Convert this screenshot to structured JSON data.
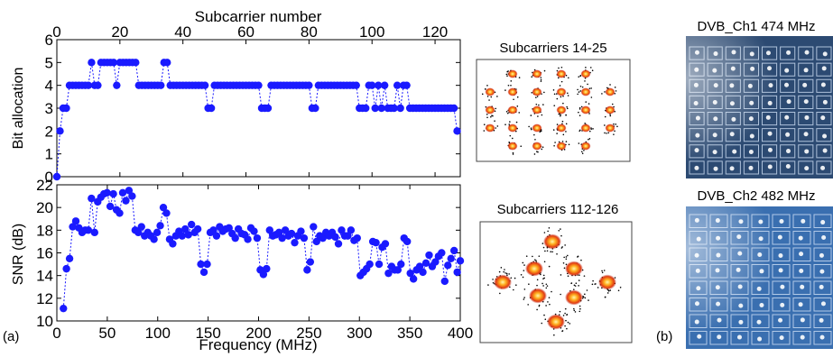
{
  "panel_labels": {
    "a": "(a)",
    "b": "(b)"
  },
  "constellation_titles": [
    "Subcarriers 14-25",
    "Subcarriers 112-126"
  ],
  "tv_titles": [
    "DVB_Ch1 474 MHz",
    "DVB_Ch2 482 MHz"
  ],
  "colors": {
    "marker": "#1a1aff",
    "line": "#1a1aff",
    "tv_bg": "#2c4a72",
    "tv_bg2": "#3a6fb0"
  },
  "chart_data": [
    {
      "type": "scatter",
      "subtype": "line-with-markers",
      "title": "",
      "xlabel": "Subcarrier number",
      "ylabel": "Bit allocation",
      "x_axis_position": "top",
      "xlim": [
        0,
        128
      ],
      "ylim": [
        0,
        6
      ],
      "xticks": [
        0,
        20,
        40,
        60,
        80,
        100,
        120
      ],
      "yticks": [
        0,
        1,
        2,
        3,
        4,
        5,
        6
      ],
      "x": [
        0,
        1,
        2,
        3,
        4,
        5,
        6,
        7,
        8,
        9,
        10,
        11,
        12,
        13,
        14,
        15,
        16,
        17,
        18,
        19,
        20,
        21,
        22,
        23,
        24,
        25,
        26,
        27,
        28,
        29,
        30,
        31,
        32,
        33,
        34,
        35,
        36,
        37,
        38,
        39,
        40,
        41,
        42,
        43,
        44,
        45,
        46,
        47,
        48,
        49,
        50,
        51,
        52,
        53,
        54,
        55,
        56,
        57,
        58,
        59,
        60,
        61,
        62,
        63,
        64,
        65,
        66,
        67,
        68,
        69,
        70,
        71,
        72,
        73,
        74,
        75,
        76,
        77,
        78,
        79,
        80,
        81,
        82,
        83,
        84,
        85,
        86,
        87,
        88,
        89,
        90,
        91,
        92,
        93,
        94,
        95,
        96,
        97,
        98,
        99,
        100,
        101,
        102,
        103,
        104,
        105,
        106,
        107,
        108,
        109,
        110,
        111,
        112,
        113,
        114,
        115,
        116,
        117,
        118,
        119,
        120,
        121,
        122,
        123,
        124,
        125,
        126,
        127
      ],
      "values": [
        0,
        2,
        3,
        3,
        4,
        4,
        4,
        4,
        4,
        4,
        4,
        5,
        4,
        4,
        5,
        5,
        5,
        5,
        5,
        4,
        5,
        5,
        5,
        5,
        5,
        5,
        4,
        4,
        4,
        4,
        4,
        4,
        4,
        4,
        5,
        5,
        4,
        4,
        4,
        4,
        4,
        4,
        4,
        4,
        4,
        4,
        4,
        4,
        3,
        3,
        4,
        4,
        4,
        4,
        4,
        4,
        4,
        4,
        4,
        4,
        4,
        4,
        4,
        4,
        4,
        3,
        3,
        3,
        4,
        4,
        4,
        4,
        4,
        4,
        4,
        4,
        4,
        4,
        4,
        4,
        4,
        3,
        3,
        4,
        4,
        4,
        4,
        4,
        4,
        4,
        4,
        4,
        4,
        4,
        4,
        4,
        3,
        3,
        3,
        4,
        4,
        3,
        4,
        3,
        4,
        3,
        3,
        3,
        4,
        3,
        4,
        4,
        3,
        3,
        3,
        3,
        3,
        3,
        3,
        3,
        3,
        3,
        3,
        3,
        3,
        3,
        3,
        2
      ]
    },
    {
      "type": "scatter",
      "subtype": "line-with-markers",
      "title": "",
      "xlabel": "Frequency (MHz)",
      "ylabel": "SNR (dB)",
      "xlim": [
        0,
        400
      ],
      "ylim": [
        10,
        22
      ],
      "xticks": [
        0,
        50,
        100,
        150,
        200,
        250,
        300,
        350,
        400
      ],
      "yticks": [
        10,
        12,
        14,
        16,
        18,
        20,
        22
      ],
      "x": [
        6.5,
        9.5,
        12.6,
        15.7,
        18.8,
        21.9,
        25,
        28.1,
        31.2,
        34.3,
        37.4,
        40.5,
        43.6,
        46.7,
        49.8,
        52.9,
        56,
        59.1,
        62.2,
        65.3,
        68.4,
        71.5,
        74.6,
        77.7,
        80.8,
        83.9,
        87,
        90.1,
        93.2,
        96.3,
        99.4,
        102.5,
        105.6,
        108.7,
        111.8,
        114.9,
        118,
        121.1,
        124.2,
        127.3,
        130.4,
        133.5,
        136.6,
        139.7,
        142.8,
        145.9,
        149,
        152.1,
        155.2,
        158.3,
        161.4,
        164.5,
        167.6,
        170.7,
        173.8,
        176.9,
        180,
        183.1,
        186.2,
        189.3,
        192.4,
        195.5,
        198.6,
        201.7,
        204.8,
        207.9,
        211,
        214.1,
        217.2,
        220.3,
        223.4,
        226.5,
        229.6,
        232.7,
        235.8,
        238.9,
        242,
        245.1,
        248.2,
        251.3,
        254.4,
        257.5,
        260.6,
        263.7,
        266.8,
        269.9,
        273,
        276.1,
        279.2,
        282.3,
        285.4,
        288.5,
        291.6,
        294.7,
        297.8,
        300.9,
        304,
        307.1,
        310.2,
        313.3,
        316.4,
        319.5,
        322.6,
        325.7,
        328.8,
        331.9,
        335,
        338.1,
        341.2,
        344.3,
        347.4,
        350.5,
        353.6,
        356.7,
        359.8,
        362.9,
        366,
        369.1,
        372.2,
        375.3,
        378.4,
        381.5,
        384.6,
        387.7,
        390.8,
        393.9,
        397,
        400
      ],
      "values": [
        11.1,
        14.6,
        15.5,
        18.3,
        18.8,
        18.2,
        17.8,
        18.0,
        18.0,
        20.8,
        17.8,
        20.5,
        20.9,
        21.2,
        21.3,
        20.1,
        21.2,
        19.8,
        19.5,
        21.3,
        20.6,
        21.5,
        21.0,
        18.0,
        17.8,
        18.3,
        17.5,
        17.8,
        17.5,
        17.2,
        17.8,
        18.4,
        20.0,
        19.5,
        17.2,
        16.8,
        17.5,
        17.9,
        17.5,
        18.1,
        17.6,
        18.5,
        17.8,
        18.1,
        15.0,
        14.3,
        15.0,
        17.8,
        18.0,
        17.5,
        18.3,
        17.9,
        18.1,
        18.2,
        17.7,
        17.3,
        18.1,
        17.7,
        17.6,
        17.2,
        18.2,
        17.9,
        17.3,
        14.5,
        14.1,
        14.6,
        18.0,
        17.5,
        17.6,
        17.8,
        17.3,
        18.0,
        17.5,
        17.7,
        16.9,
        17.5,
        17.9,
        17.3,
        14.5,
        15.2,
        18.3,
        17.0,
        17.5,
        17.3,
        17.8,
        17.5,
        17.8,
        17.4,
        16.8,
        18.0,
        17.5,
        17.5,
        18.0,
        17.1,
        17.3,
        14.0,
        14.3,
        14.6,
        15.0,
        17.0,
        16.9,
        15.0,
        16.5,
        16.8,
        14.2,
        14.8,
        14.5,
        14.5,
        15.0,
        17.3,
        17.0,
        14.2,
        13.7,
        14.5,
        14.8,
        14.3,
        15.1,
        15.8,
        14.8,
        15.2,
        15.7,
        16.0,
        13.5,
        14.9,
        15.5,
        16.2,
        14.3,
        15.3
      ]
    }
  ]
}
